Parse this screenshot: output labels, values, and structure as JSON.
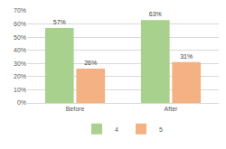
{
  "chart_data": {
    "type": "bar",
    "categories": [
      "Before",
      "After"
    ],
    "series": [
      {
        "name": "4",
        "color": "#a9d18e",
        "values": [
          57,
          63
        ],
        "value_labels": [
          "57%",
          "63%"
        ]
      },
      {
        "name": "5",
        "color": "#f4b183",
        "values": [
          26,
          31
        ],
        "value_labels": [
          "26%",
          "31%"
        ]
      }
    ],
    "ylim": [
      0,
      70
    ],
    "yticks": [
      {
        "value": 0,
        "label": "0%"
      },
      {
        "value": 10,
        "label": "10%"
      },
      {
        "value": 20,
        "label": "20%"
      },
      {
        "value": 30,
        "label": "30%"
      },
      {
        "value": 40,
        "label": "40%"
      },
      {
        "value": 50,
        "label": "50%"
      },
      {
        "value": 60,
        "label": "60%"
      },
      {
        "value": 70,
        "label": "70%"
      }
    ],
    "grid": true,
    "legend": "bottom",
    "data_labels": true
  }
}
